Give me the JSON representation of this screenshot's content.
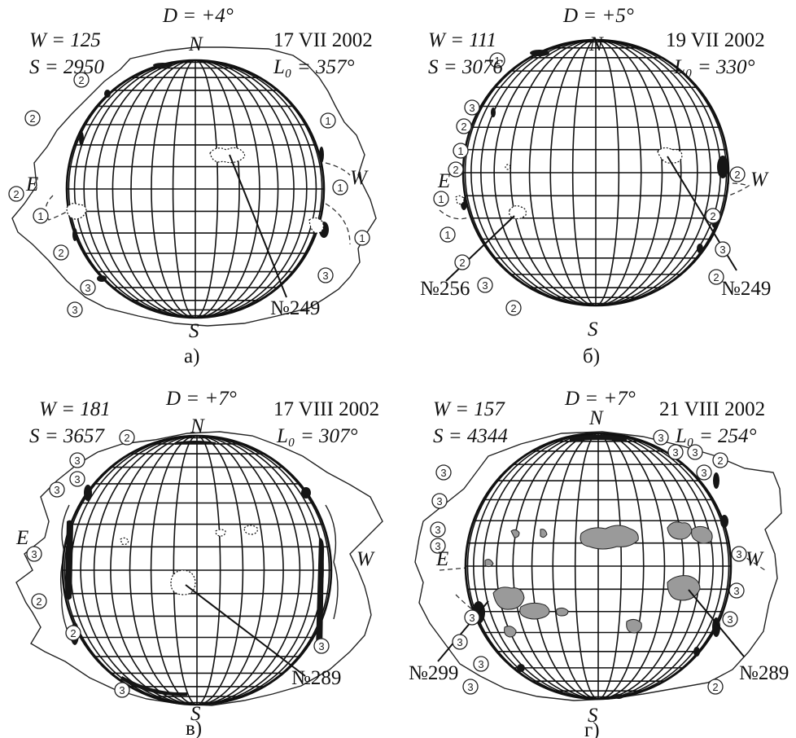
{
  "panels": [
    {
      "id": "a",
      "D": "D = +4°",
      "W": "W = 125",
      "S": "S = 2950",
      "date": "17 VII 2002",
      "L0": "L₀ = 357°",
      "N": "N",
      "Sp": "S",
      "E": "E",
      "Wd": "W",
      "caption": "а)",
      "regions": [
        "№249"
      ],
      "zone_marks": [
        "②",
        "②",
        "②",
        "①",
        "②",
        "①",
        "①",
        "①",
        "③",
        "③",
        "③"
      ]
    },
    {
      "id": "b",
      "D": "D = +5°",
      "W": "W = 111",
      "S": "S = 3076",
      "date": "19 VII 2002",
      "L0": "L₀ = 330°",
      "N": "N",
      "Sp": "S",
      "E": "E",
      "Wd": "W",
      "caption": "б)",
      "regions": [
        "№256",
        "№249"
      ],
      "zone_marks": [
        "①",
        "③",
        "②",
        "①",
        "②",
        "①",
        "①",
        "②",
        "③",
        "②",
        "③",
        "②",
        "②",
        "②"
      ]
    },
    {
      "id": "c",
      "D": "D = +7°",
      "W": "W = 181",
      "S": "S = 3657",
      "date": "17 VIII 2002",
      "L0": "L₀ = 307°",
      "N": "N",
      "Sp": "S",
      "E": "E",
      "Wd": "W",
      "caption": "в)",
      "regions": [
        "№289"
      ],
      "zone_marks": [
        "②",
        "③",
        "③",
        "③",
        "③",
        "②",
        "②",
        "③",
        "③"
      ]
    },
    {
      "id": "d",
      "D": "D = +7°",
      "W": "W = 157",
      "S": "S = 4344",
      "date": "21 VIII 2002",
      "L0": "L₀ = 254°",
      "N": "N",
      "Sp": "S",
      "E": "E",
      "Wd": "W",
      "caption": "г)",
      "regions": [
        "№299",
        "№289"
      ],
      "zone_marks": [
        "③",
        "③",
        "③",
        "③",
        "③",
        "③",
        "②",
        "③",
        "③",
        "③",
        "③",
        "③",
        "③",
        "③",
        "③",
        "②",
        "③"
      ]
    }
  ]
}
